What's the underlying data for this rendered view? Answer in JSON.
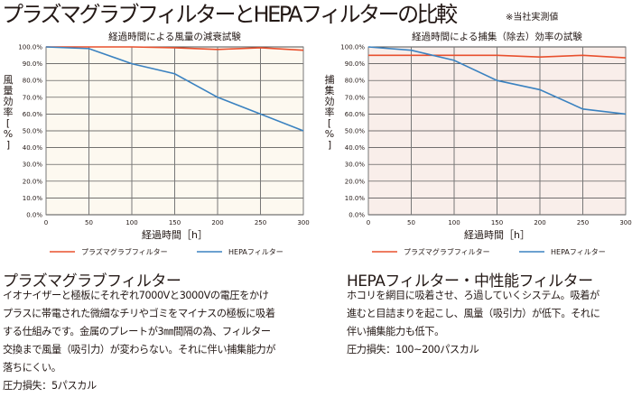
{
  "page": {
    "title": "プラズマグラブフィルターとHEPAフィルターの比較",
    "note": "※当社実測値"
  },
  "colors": {
    "plasma": "#e8502e",
    "hepa": "#3b82c0",
    "left_bg": "#fdf9f0",
    "right_bg": "#f9eeea"
  },
  "chart_data": [
    {
      "type": "line",
      "title": "経過時間による風量の減衰試験",
      "xlabel": "経過時間［h］",
      "ylabel": "風量効率［%］",
      "ylabel_chars": [
        "風",
        "量",
        "効",
        "率",
        "[",
        "%",
        "]"
      ],
      "x": [
        0,
        50,
        100,
        150,
        200,
        250,
        300
      ],
      "xlim": [
        0,
        300
      ],
      "ylim": [
        0,
        100
      ],
      "xticks": [
        "0",
        "50",
        "100",
        "150",
        "200",
        "250",
        "300"
      ],
      "yticks": [
        "0.0%",
        "10.0%",
        "20.0%",
        "30.0%",
        "40.0%",
        "50.0%",
        "60.0%",
        "70.0%",
        "80.0%",
        "90.0%",
        "100.0%"
      ],
      "grid": true,
      "legend_position": "bottom",
      "series": [
        {
          "name": "プラズマグラブフィルター",
          "values": [
            100,
            100,
            100,
            99.5,
            98.5,
            99.5,
            98
          ]
        },
        {
          "name": "HEPAフィルター",
          "values": [
            100,
            99,
            90,
            84,
            70,
            60,
            50
          ]
        }
      ]
    },
    {
      "type": "line",
      "title": "経過時間による捕集（除去）効率の試験",
      "xlabel": "経過時間［h］",
      "ylabel": "捕集効率［%］",
      "ylabel_chars": [
        "捕",
        "集",
        "効",
        "率",
        "[",
        "%",
        "]"
      ],
      "x": [
        0,
        50,
        100,
        150,
        200,
        250,
        300
      ],
      "xlim": [
        0,
        300
      ],
      "ylim": [
        0,
        100
      ],
      "xticks": [
        "0",
        "50",
        "100",
        "150",
        "200",
        "250",
        "300"
      ],
      "yticks": [
        "0.0%",
        "10.0%",
        "20.0%",
        "30.0%",
        "40.0%",
        "50.0%",
        "60.0%",
        "70.0%",
        "80.0%",
        "90.0%",
        "100.0%"
      ],
      "grid": true,
      "legend_position": "bottom",
      "series": [
        {
          "name": "プラズマグラブフィルター",
          "values": [
            95,
            95,
            95,
            95,
            94,
            95,
            93.5
          ]
        },
        {
          "name": "HEPAフィルター",
          "values": [
            100,
            98,
            92,
            80,
            74.5,
            63,
            60
          ]
        }
      ]
    }
  ],
  "sections": {
    "plasma": {
      "heading": "プラズマグラブフィルター",
      "lines": [
        "イオナイザーと極板にそれぞれ7000Vと3000Vの電圧をかけ",
        "プラスに帯電された微細なチリやゴミをマイナスの極板に吸着",
        "する仕組みです。金属のプレートが3㎜間隔の為、フィルター",
        "交換まで風量（吸引力）が変わらない。それに伴い捕集能力が",
        "落ちにくい。",
        "圧力損失：5パスカル"
      ]
    },
    "hepa": {
      "heading": "HEPAフィルター・中性能フィルター",
      "lines": [
        "ホコリを網目に吸着させ、ろ過していくシステム。吸着が",
        "進むと目詰まりを起こし、風量（吸引力）が低下。それに",
        "伴い捕集能力も低下。",
        "圧力損失：100~200パスカル"
      ]
    }
  }
}
